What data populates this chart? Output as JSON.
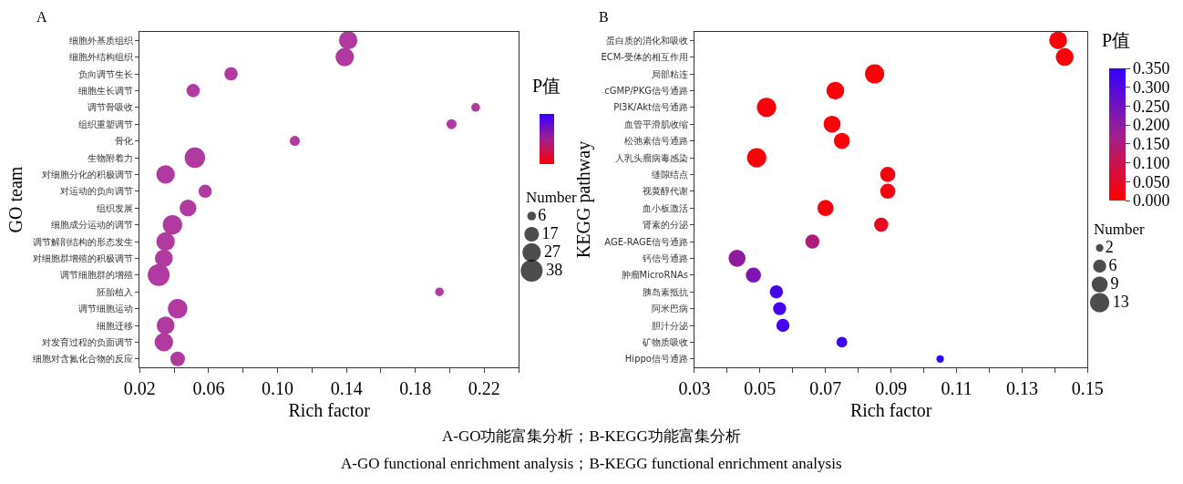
{
  "chart_data": [
    {
      "type": "bubble",
      "title": "A",
      "xlabel": "Rich factor",
      "ylabel": "GO team",
      "clabel": "P值",
      "legend_title": "Number",
      "categories": [
        "细胞外基质组织",
        "细胞外结构组织",
        "负向调节生长",
        "细胞生长调节",
        "调节骨吸收",
        "组织重塑调节",
        "骨化",
        "生物附着力",
        "对细胞分化的积极调节",
        "对运动的负向调节",
        "组织发展",
        "细胞成分运动的调节",
        "调节解剖结构的形态发生",
        "对细胞群增殖的积极调节",
        "调节细胞群的增殖",
        "胚胎植入",
        "调节细胞运动",
        "细胞迁移",
        "对发育过程的负面调节",
        "细胞对含氮化合物的反应"
      ],
      "orientation": "horizontal",
      "series": [
        {
          "color": "#b03aa0",
          "values": [
            0.141,
            0.139,
            0.073,
            0.051,
            0.215,
            0.201,
            0.11,
            0.052,
            0.035,
            0.058,
            0.048,
            0.039,
            0.035,
            0.034,
            0.031,
            0.194,
            0.042,
            0.035,
            0.034,
            0.042
          ],
          "sizes": [
            27,
            27,
            14,
            14,
            6,
            8,
            8,
            33,
            27,
            14,
            22,
            30,
            27,
            25,
            38,
            6,
            30,
            25,
            27,
            17
          ]
        }
      ],
      "size_legend": [
        6,
        17,
        27,
        38
      ],
      "xlim": [
        0.02,
        0.24
      ],
      "xticks": [
        0.02,
        {
          "value": 0.04,
          "label": null
        },
        0.06,
        {
          "value": 0.08,
          "label": null
        },
        {
          "value": 0.1,
          "label": "0.10"
        },
        {
          "value": 0.12,
          "label": null
        },
        0.14,
        {
          "value": 0.16,
          "label": null
        },
        0.18,
        {
          "value": 0.2,
          "label": null
        },
        0.22,
        {
          "value": 0.24,
          "label": null
        }
      ],
      "annotations": [
        "A-GO功能富集分析；B-KEGG功能富集分析",
        "A-GO functional enrichment analysis；B-KEGG functional enrichment analysis"
      ]
    },
    {
      "type": "bubble",
      "title": "B",
      "xlabel": "Rich factor",
      "ylabel": "KEGG pathway",
      "clabel": "P值",
      "legend_title": "Number",
      "categories": [
        "蛋白质的消化和吸收",
        "ECM-受体的相互作用",
        "局部粘连",
        "cGMP/PKG信号通路",
        "PI3K/Akt信号通路",
        "血管平滑肌收缩",
        "松弛素信号通路",
        "人乳头瘤病毒感染",
        "缝隙结点",
        "视黄醇代谢",
        "血小板激活",
        "肾素的分泌",
        "AGE-RAGE信号通路",
        "钙信号通路",
        "肿瘤MicroRNAs",
        "胰岛素抵抗",
        "阿米巴病",
        "胆汁分泌",
        "矿物质吸收",
        "Hippo信号通路"
      ],
      "orientation": "horizontal",
      "series": [
        {
          "values": [
            0.141,
            0.143,
            0.085,
            0.073,
            0.052,
            0.072,
            0.075,
            0.049,
            0.089,
            0.089,
            0.07,
            0.087,
            0.066,
            0.043,
            0.048,
            0.055,
            0.056,
            0.057,
            0.075,
            0.105
          ],
          "sizes": [
            11,
            11,
            13,
            11,
            13,
            10,
            9,
            13,
            8,
            8,
            9,
            7,
            7,
            10,
            8,
            6,
            6,
            6,
            4,
            2
          ],
          "cvalues": [
            0.01,
            0.01,
            0.01,
            0.01,
            0.01,
            0.01,
            0.01,
            0.01,
            0.02,
            0.02,
            0.02,
            0.04,
            0.15,
            0.2,
            0.23,
            0.32,
            0.32,
            0.32,
            0.33,
            0.35
          ]
        }
      ],
      "size_legend": [
        2,
        6,
        9,
        13
      ],
      "clim": [
        0,
        0.35
      ],
      "cticks": [
        {
          "value": 0,
          "label": "0.000"
        },
        {
          "value": 0.05,
          "label": "0.050"
        },
        {
          "value": 0.1,
          "label": "0.100"
        },
        {
          "value": 0.15,
          "label": "0.150"
        },
        {
          "value": 0.2,
          "label": "0.200"
        },
        {
          "value": 0.25,
          "label": "0.250"
        },
        {
          "value": 0.3,
          "label": "0.300"
        },
        {
          "value": 0.35,
          "label": "0.350"
        }
      ],
      "xlim": [
        0.03,
        0.15
      ],
      "xticks": [
        0.03,
        {
          "value": 0.04,
          "label": null
        },
        0.05,
        {
          "value": 0.06,
          "label": null
        },
        0.07,
        {
          "value": 0.08,
          "label": null
        },
        0.09,
        {
          "value": 0.1,
          "label": null
        },
        0.11,
        {
          "value": 0.12,
          "label": null
        },
        0.13,
        {
          "value": 0.14,
          "label": null
        },
        0.15
      ],
      "marker": "circle"
    }
  ]
}
